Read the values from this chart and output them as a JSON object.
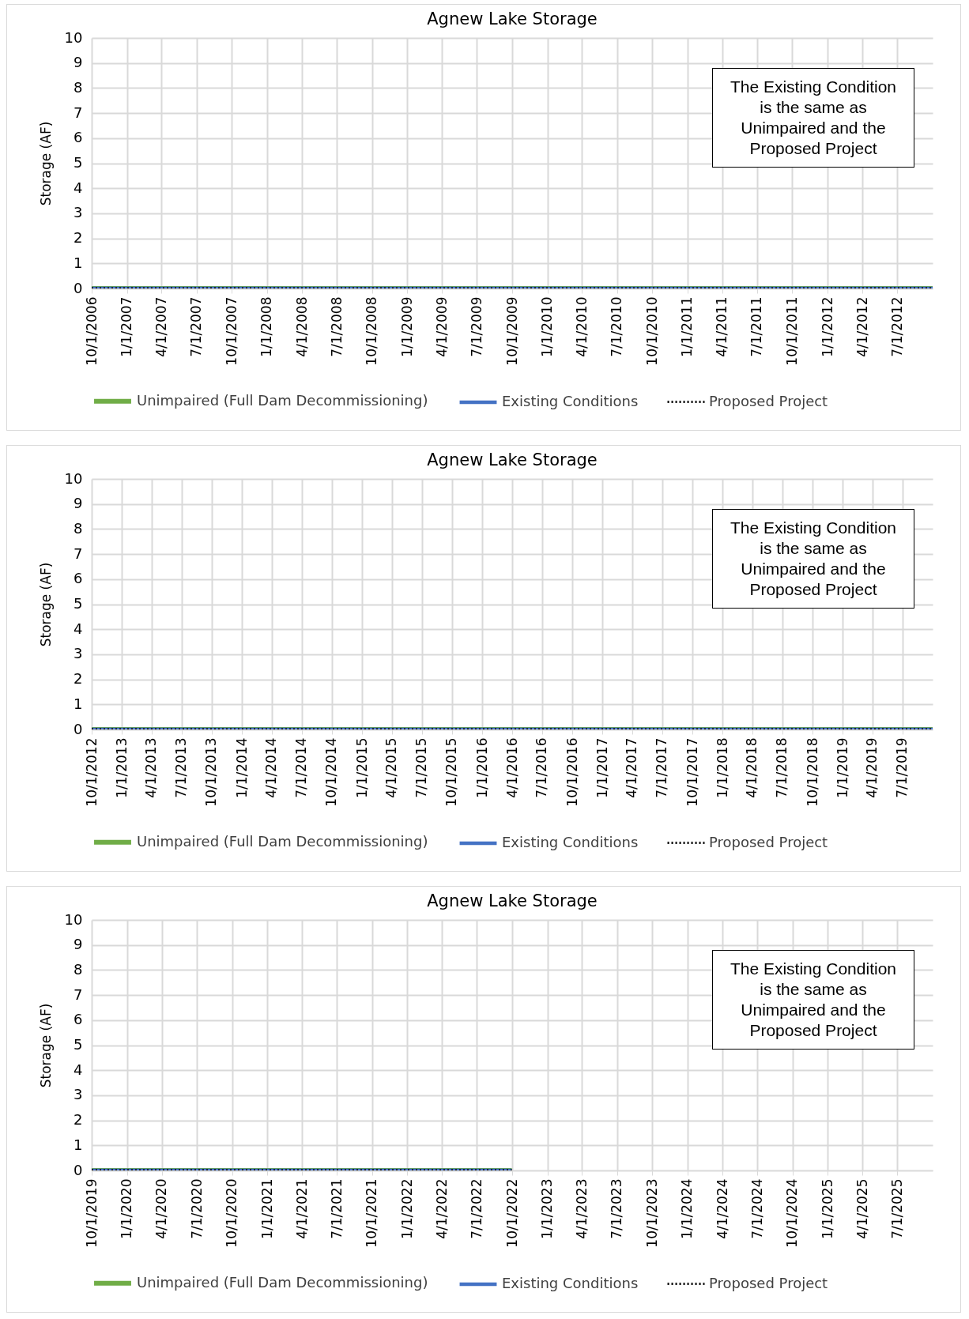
{
  "chart_data": [
    {
      "type": "line",
      "title": "Agnew Lake Storage",
      "ylabel": "Storage (AF)",
      "xlim": [
        "2006-10-01",
        "2012-10-01"
      ],
      "ylim": [
        0,
        10
      ],
      "yticks": [
        0,
        1,
        2,
        3,
        4,
        5,
        6,
        7,
        8,
        9,
        10
      ],
      "xticks": [
        {
          "value": "2006-10-01",
          "label": "10/1/2006"
        },
        {
          "value": "2007-01-01",
          "label": "1/1/2007"
        },
        {
          "value": "2007-04-01",
          "label": "4/1/2007"
        },
        {
          "value": "2007-07-01",
          "label": "7/1/2007"
        },
        {
          "value": "2007-10-01",
          "label": "10/1/2007"
        },
        {
          "value": "2008-01-01",
          "label": "1/1/2008"
        },
        {
          "value": "2008-04-01",
          "label": "4/1/2008"
        },
        {
          "value": "2008-07-01",
          "label": "7/1/2008"
        },
        {
          "value": "2008-10-01",
          "label": "10/1/2008"
        },
        {
          "value": "2009-01-01",
          "label": "1/1/2009"
        },
        {
          "value": "2009-04-01",
          "label": "4/1/2009"
        },
        {
          "value": "2009-07-01",
          "label": "7/1/2009"
        },
        {
          "value": "2009-10-01",
          "label": "10/1/2009"
        },
        {
          "value": "2010-01-01",
          "label": "1/1/2010"
        },
        {
          "value": "2010-04-01",
          "label": "4/1/2010"
        },
        {
          "value": "2010-07-01",
          "label": "7/1/2010"
        },
        {
          "value": "2010-10-01",
          "label": "10/1/2010"
        },
        {
          "value": "2011-01-01",
          "label": "1/1/2011"
        },
        {
          "value": "2011-04-01",
          "label": "4/1/2011"
        },
        {
          "value": "2011-07-01",
          "label": "7/1/2011"
        },
        {
          "value": "2011-10-01",
          "label": "10/1/2011"
        },
        {
          "value": "2012-01-01",
          "label": "1/1/2012"
        },
        {
          "value": "2012-04-01",
          "label": "4/1/2012"
        },
        {
          "value": "2012-07-01",
          "label": "7/1/2012"
        }
      ],
      "series": [
        {
          "name": "Unimpaired (Full Dam Decommissioning)",
          "color": "#70ad47",
          "line_style": "solid",
          "x": [
            "2006-10-01",
            "2012-10-01"
          ],
          "values": [
            0,
            0
          ]
        },
        {
          "name": "Existing Conditions",
          "color": "#4472c4",
          "line_style": "solid",
          "x": [
            "2006-10-01",
            "2012-10-01"
          ],
          "values": [
            0,
            0
          ]
        },
        {
          "name": "Proposed Project",
          "color": "#000000",
          "line_style": "dotted",
          "x": [
            "2006-10-01",
            "2012-10-01"
          ],
          "values": [
            0,
            0
          ]
        }
      ],
      "annotations": [
        "The Existing Condition\nis the same as\nUnimpaired and the\nProposed Project"
      ],
      "grid": true,
      "legend": "bottom"
    },
    {
      "type": "line",
      "title": "Agnew Lake Storage",
      "ylabel": "Storage (AF)",
      "xlim": [
        "2012-10-01",
        "2019-10-01"
      ],
      "ylim": [
        0,
        10
      ],
      "yticks": [
        0,
        1,
        2,
        3,
        4,
        5,
        6,
        7,
        8,
        9,
        10
      ],
      "xticks": [
        {
          "value": "2012-10-01",
          "label": "10/1/2012"
        },
        {
          "value": "2013-01-01",
          "label": "1/1/2013"
        },
        {
          "value": "2013-04-01",
          "label": "4/1/2013"
        },
        {
          "value": "2013-07-01",
          "label": "7/1/2013"
        },
        {
          "value": "2013-10-01",
          "label": "10/1/2013"
        },
        {
          "value": "2014-01-01",
          "label": "1/1/2014"
        },
        {
          "value": "2014-04-01",
          "label": "4/1/2014"
        },
        {
          "value": "2014-07-01",
          "label": "7/1/2014"
        },
        {
          "value": "2014-10-01",
          "label": "10/1/2014"
        },
        {
          "value": "2015-01-01",
          "label": "1/1/2015"
        },
        {
          "value": "2015-04-01",
          "label": "4/1/2015"
        },
        {
          "value": "2015-07-01",
          "label": "7/1/2015"
        },
        {
          "value": "2015-10-01",
          "label": "10/1/2015"
        },
        {
          "value": "2016-01-01",
          "label": "1/1/2016"
        },
        {
          "value": "2016-04-01",
          "label": "4/1/2016"
        },
        {
          "value": "2016-07-01",
          "label": "7/1/2016"
        },
        {
          "value": "2016-10-01",
          "label": "10/1/2016"
        },
        {
          "value": "2017-01-01",
          "label": "1/1/2017"
        },
        {
          "value": "2017-04-01",
          "label": "4/1/2017"
        },
        {
          "value": "2017-07-01",
          "label": "7/1/2017"
        },
        {
          "value": "2017-10-01",
          "label": "10/1/2017"
        },
        {
          "value": "2018-01-01",
          "label": "1/1/2018"
        },
        {
          "value": "2018-04-01",
          "label": "4/1/2018"
        },
        {
          "value": "2018-07-01",
          "label": "7/1/2018"
        },
        {
          "value": "2018-10-01",
          "label": "10/1/2018"
        },
        {
          "value": "2019-01-01",
          "label": "1/1/2019"
        },
        {
          "value": "2019-04-01",
          "label": "4/1/2019"
        },
        {
          "value": "2019-07-01",
          "label": "7/1/2019"
        }
      ],
      "series": [
        {
          "name": "Unimpaired (Full Dam Decommissioning)",
          "color": "#70ad47",
          "line_style": "solid",
          "x": [
            "2012-10-01",
            "2019-10-01"
          ],
          "values": [
            0,
            0
          ]
        },
        {
          "name": "Existing Conditions",
          "color": "#4472c4",
          "line_style": "solid",
          "x": [
            "2012-10-01",
            "2019-10-01"
          ],
          "values": [
            0,
            0
          ]
        },
        {
          "name": "Proposed Project",
          "color": "#000000",
          "line_style": "dotted",
          "x": [
            "2012-10-01",
            "2019-10-01"
          ],
          "values": [
            0,
            0
          ]
        }
      ],
      "annotations": [
        "The Existing Condition\nis the same as\nUnimpaired and the\nProposed Project"
      ],
      "grid": true,
      "legend": "bottom"
    },
    {
      "type": "line",
      "title": "Agnew Lake Storage",
      "ylabel": "Storage (AF)",
      "xlim": [
        "2019-10-01",
        "2025-10-01"
      ],
      "ylim": [
        0,
        10
      ],
      "yticks": [
        0,
        1,
        2,
        3,
        4,
        5,
        6,
        7,
        8,
        9,
        10
      ],
      "xticks": [
        {
          "value": "2019-10-01",
          "label": "10/1/2019"
        },
        {
          "value": "2020-01-01",
          "label": "1/1/2020"
        },
        {
          "value": "2020-04-01",
          "label": "4/1/2020"
        },
        {
          "value": "2020-07-01",
          "label": "7/1/2020"
        },
        {
          "value": "2020-10-01",
          "label": "10/1/2020"
        },
        {
          "value": "2021-01-01",
          "label": "1/1/2021"
        },
        {
          "value": "2021-04-01",
          "label": "4/1/2021"
        },
        {
          "value": "2021-07-01",
          "label": "7/1/2021"
        },
        {
          "value": "2021-10-01",
          "label": "10/1/2021"
        },
        {
          "value": "2022-01-01",
          "label": "1/1/2022"
        },
        {
          "value": "2022-04-01",
          "label": "4/1/2022"
        },
        {
          "value": "2022-07-01",
          "label": "7/1/2022"
        },
        {
          "value": "2022-10-01",
          "label": "10/1/2022"
        },
        {
          "value": "2023-01-01",
          "label": "1/1/2023"
        },
        {
          "value": "2023-04-01",
          "label": "4/1/2023"
        },
        {
          "value": "2023-07-01",
          "label": "7/1/2023"
        },
        {
          "value": "2023-10-01",
          "label": "10/1/2023"
        },
        {
          "value": "2024-01-01",
          "label": "1/1/2024"
        },
        {
          "value": "2024-04-01",
          "label": "4/1/2024"
        },
        {
          "value": "2024-07-01",
          "label": "7/1/2024"
        },
        {
          "value": "2024-10-01",
          "label": "10/1/2024"
        },
        {
          "value": "2025-01-01",
          "label": "1/1/2025"
        },
        {
          "value": "2025-04-01",
          "label": "4/1/2025"
        },
        {
          "value": "2025-07-01",
          "label": "7/1/2025"
        }
      ],
      "series": [
        {
          "name": "Unimpaired (Full Dam Decommissioning)",
          "color": "#70ad47",
          "line_style": "solid",
          "x": [
            "2019-10-01",
            "2022-09-30"
          ],
          "values": [
            0,
            0
          ]
        },
        {
          "name": "Existing Conditions",
          "color": "#4472c4",
          "line_style": "solid",
          "x": [
            "2019-10-01",
            "2022-09-30"
          ],
          "values": [
            0,
            0
          ]
        },
        {
          "name": "Proposed Project",
          "color": "#000000",
          "line_style": "dotted",
          "x": [
            "2019-10-01",
            "2022-09-30"
          ],
          "values": [
            0,
            0
          ]
        }
      ],
      "annotations": [
        "The Existing Condition\nis the same as\nUnimpaired and the\nProposed Project"
      ],
      "grid": true,
      "legend": "bottom"
    }
  ]
}
